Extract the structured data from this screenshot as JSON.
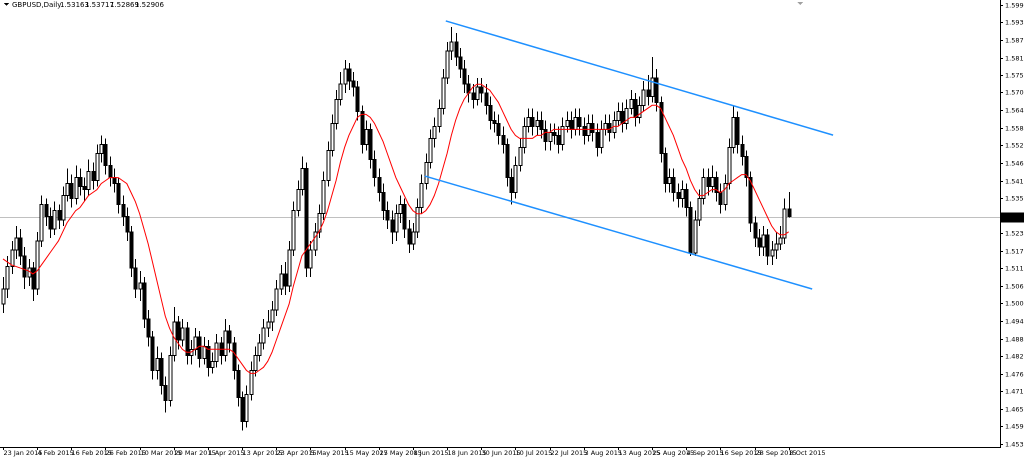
{
  "chart_data": {
    "type": "candlestick",
    "symbol": "GBPUSD,Daily",
    "categories": [
      "23 Jan 2015",
      null,
      null,
      null,
      null,
      null,
      null,
      null,
      "4 Feb 2015",
      null,
      null,
      null,
      null,
      null,
      null,
      null,
      "16 Feb 2015",
      null,
      null,
      null,
      null,
      null,
      null,
      null,
      "26 Feb 2015",
      null,
      null,
      null,
      null,
      null,
      null,
      null,
      "10 Mar 2015",
      null,
      null,
      null,
      null,
      null,
      null,
      null,
      "20 Mar 2015",
      null,
      null,
      null,
      null,
      null,
      null,
      null,
      "1 Apr 2015",
      null,
      null,
      null,
      null,
      null,
      null,
      null,
      "13 Apr 2015",
      null,
      null,
      null,
      null,
      null,
      null,
      null,
      "23 Apr 2015",
      null,
      null,
      null,
      null,
      null,
      null,
      null,
      "5 May 2015",
      null,
      null,
      null,
      null,
      null,
      null,
      null,
      "15 May 2015",
      null,
      null,
      null,
      null,
      null,
      null,
      null,
      "27 May 2015",
      null,
      null,
      null,
      null,
      null,
      null,
      null,
      "8 Jun 2015",
      null,
      null,
      null,
      null,
      null,
      null,
      null,
      "18 Jun 2015",
      null,
      null,
      null,
      null,
      null,
      null,
      null,
      "30 Jun 2015",
      null,
      null,
      null,
      null,
      null,
      null,
      null,
      "10 Jul 2015",
      null,
      null,
      null,
      null,
      null,
      null,
      null,
      "22 Jul 2015",
      null,
      null,
      null,
      null,
      null,
      null,
      null,
      "3 Aug 2015",
      null,
      null,
      null,
      null,
      null,
      null,
      null,
      "13 Aug 2015",
      null,
      null,
      null,
      null,
      null,
      null,
      null,
      "25 Aug 2015",
      null,
      null,
      null,
      null,
      null,
      null,
      null,
      "4 Sep 2015",
      null,
      null,
      null,
      null,
      null,
      null,
      null,
      "16 Sep 2015",
      null,
      null,
      null,
      null,
      null,
      null,
      null,
      "28 Sep 2015",
      null,
      null,
      null,
      null,
      null,
      null,
      null,
      "8 Oct 2015"
    ],
    "open": [
      1.5,
      1.505,
      1.5125,
      1.518,
      1.522,
      1.516,
      1.509,
      1.512,
      1.505,
      1.521,
      1.533,
      1.529,
      1.525,
      1.531,
      1.528,
      1.536,
      1.54,
      1.535,
      1.542,
      1.539,
      1.538,
      1.544,
      1.541,
      1.55,
      1.553,
      1.546,
      1.542,
      1.54,
      1.533,
      1.529,
      1.524,
      1.512,
      1.505,
      1.507,
      1.495,
      1.489,
      1.478,
      1.482,
      1.473,
      1.468,
      1.483,
      1.494,
      1.488,
      1.492,
      1.483,
      1.485,
      1.489,
      1.482,
      1.486,
      1.479,
      1.481,
      1.487,
      1.483,
      1.491,
      1.487,
      1.478,
      1.469,
      1.461,
      1.47,
      1.478,
      1.483,
      1.487,
      1.492,
      1.494,
      1.498,
      1.505,
      1.51,
      1.506,
      1.518,
      1.531,
      1.538,
      1.545,
      1.512,
      1.518,
      1.524,
      1.53,
      1.541,
      1.551,
      1.56,
      1.568,
      1.573,
      1.578,
      1.574,
      1.572,
      1.564,
      1.553,
      1.558,
      1.548,
      1.542,
      1.537,
      1.531,
      1.528,
      1.524,
      1.53,
      1.533,
      1.525,
      1.52,
      1.524,
      1.532,
      1.54,
      1.547,
      1.555,
      1.559,
      1.565,
      1.575,
      1.584,
      1.587,
      1.582,
      1.578,
      1.573,
      1.57,
      1.568,
      1.572,
      1.57,
      1.566,
      1.561,
      1.56,
      1.556,
      1.553,
      1.542,
      1.537,
      1.546,
      1.552,
      1.559,
      1.562,
      1.559,
      1.561,
      1.558,
      1.554,
      1.557,
      1.556,
      1.553,
      1.559,
      1.561,
      1.558,
      1.562,
      1.559,
      1.556,
      1.56,
      1.557,
      1.552,
      1.558,
      1.56,
      1.557,
      1.561,
      1.564,
      1.56,
      1.565,
      1.568,
      1.562,
      1.566,
      1.571,
      1.569,
      1.575,
      1.567,
      1.55,
      1.54,
      1.542,
      1.537,
      1.535,
      1.538,
      1.532,
      1.517,
      1.528,
      1.535,
      1.542,
      1.539,
      1.542,
      1.537,
      1.533,
      1.54,
      1.552,
      1.562,
      1.553,
      1.549,
      1.542,
      1.527,
      1.522,
      1.519,
      1.523,
      1.516,
      1.518,
      1.52,
      1.522,
      1.53163
    ],
    "high": [
      1.509,
      1.516,
      1.521,
      1.526,
      1.525,
      1.519,
      1.515,
      1.514,
      1.524,
      1.536,
      1.535,
      1.532,
      1.534,
      1.533,
      1.539,
      1.545,
      1.543,
      1.546,
      1.545,
      1.542,
      1.548,
      1.547,
      1.553,
      1.556,
      1.555,
      1.549,
      1.545,
      1.542,
      1.536,
      1.532,
      1.526,
      1.515,
      1.511,
      1.509,
      1.498,
      1.491,
      1.486,
      1.484,
      1.476,
      1.486,
      1.499,
      1.496,
      1.495,
      1.494,
      1.488,
      1.492,
      1.491,
      1.489,
      1.488,
      1.484,
      1.49,
      1.489,
      1.495,
      1.493,
      1.489,
      1.48,
      1.471,
      1.473,
      1.481,
      1.486,
      1.49,
      1.495,
      1.498,
      1.501,
      1.508,
      1.513,
      1.514,
      1.521,
      1.534,
      1.541,
      1.549,
      1.547,
      1.521,
      1.527,
      1.533,
      1.544,
      1.554,
      1.563,
      1.571,
      1.577,
      1.581,
      1.58,
      1.577,
      1.574,
      1.566,
      1.561,
      1.56,
      1.551,
      1.545,
      1.54,
      1.534,
      1.531,
      1.533,
      1.536,
      1.535,
      1.528,
      1.527,
      1.535,
      1.543,
      1.55,
      1.558,
      1.562,
      1.568,
      1.578,
      1.587,
      1.592,
      1.59,
      1.585,
      1.581,
      1.576,
      1.573,
      1.575,
      1.575,
      1.573,
      1.569,
      1.564,
      1.563,
      1.559,
      1.555,
      1.545,
      1.549,
      1.555,
      1.562,
      1.565,
      1.565,
      1.564,
      1.564,
      1.561,
      1.56,
      1.56,
      1.559,
      1.562,
      1.564,
      1.564,
      1.565,
      1.565,
      1.562,
      1.563,
      1.563,
      1.56,
      1.561,
      1.563,
      1.563,
      1.564,
      1.567,
      1.567,
      1.568,
      1.571,
      1.57,
      1.569,
      1.574,
      1.576,
      1.582,
      1.578,
      1.569,
      1.552,
      1.545,
      1.545,
      1.54,
      1.541,
      1.54,
      1.534,
      1.531,
      1.538,
      1.545,
      1.545,
      1.546,
      1.544,
      1.54,
      1.543,
      1.555,
      1.566,
      1.564,
      1.556,
      1.551,
      1.544,
      1.529,
      1.525,
      1.526,
      1.525,
      1.521,
      1.524,
      1.526,
      1.535,
      1.53717
    ],
    "low": [
      1.497,
      1.502,
      1.51,
      1.515,
      1.513,
      1.505,
      1.506,
      1.501,
      1.503,
      1.519,
      1.526,
      1.522,
      1.523,
      1.525,
      1.526,
      1.534,
      1.532,
      1.533,
      1.536,
      1.534,
      1.536,
      1.538,
      1.539,
      1.547,
      1.543,
      1.539,
      1.537,
      1.53,
      1.526,
      1.521,
      1.509,
      1.502,
      1.501,
      1.492,
      1.486,
      1.475,
      1.475,
      1.47,
      1.464,
      1.466,
      1.481,
      1.485,
      1.486,
      1.48,
      1.48,
      1.483,
      1.479,
      1.48,
      1.476,
      1.477,
      1.479,
      1.48,
      1.481,
      1.484,
      1.475,
      1.466,
      1.458,
      1.459,
      1.468,
      1.476,
      1.481,
      1.485,
      1.489,
      1.491,
      1.496,
      1.503,
      1.503,
      1.504,
      1.516,
      1.529,
      1.536,
      1.509,
      1.509,
      1.516,
      1.522,
      1.528,
      1.539,
      1.549,
      1.558,
      1.566,
      1.57,
      1.571,
      1.569,
      1.561,
      1.55,
      1.551,
      1.545,
      1.539,
      1.534,
      1.528,
      1.525,
      1.52,
      1.521,
      1.527,
      1.522,
      1.517,
      1.518,
      1.522,
      1.53,
      1.538,
      1.545,
      1.552,
      1.557,
      1.563,
      1.573,
      1.581,
      1.579,
      1.575,
      1.57,
      1.567,
      1.565,
      1.566,
      1.567,
      1.563,
      1.558,
      1.557,
      1.553,
      1.55,
      1.539,
      1.533,
      1.535,
      1.544,
      1.55,
      1.557,
      1.556,
      1.556,
      1.555,
      1.551,
      1.551,
      1.553,
      1.55,
      1.551,
      1.557,
      1.555,
      1.556,
      1.556,
      1.553,
      1.554,
      1.554,
      1.549,
      1.55,
      1.556,
      1.554,
      1.555,
      1.559,
      1.557,
      1.558,
      1.563,
      1.559,
      1.56,
      1.564,
      1.566,
      1.567,
      1.564,
      1.547,
      1.537,
      1.537,
      1.534,
      1.532,
      1.532,
      1.529,
      1.516,
      1.516,
      1.526,
      1.533,
      1.536,
      1.537,
      1.534,
      1.53,
      1.531,
      1.538,
      1.55,
      1.55,
      1.546,
      1.539,
      1.524,
      1.519,
      1.516,
      1.516,
      1.513,
      1.513,
      1.515,
      1.518,
      1.52,
      1.52869
    ],
    "close": [
      1.505,
      1.5125,
      1.518,
      1.522,
      1.516,
      1.509,
      1.512,
      1.505,
      1.521,
      1.533,
      1.529,
      1.525,
      1.531,
      1.528,
      1.536,
      1.54,
      1.535,
      1.542,
      1.539,
      1.538,
      1.544,
      1.541,
      1.55,
      1.553,
      1.546,
      1.542,
      1.54,
      1.533,
      1.529,
      1.524,
      1.512,
      1.505,
      1.507,
      1.495,
      1.489,
      1.478,
      1.482,
      1.473,
      1.468,
      1.483,
      1.494,
      1.488,
      1.492,
      1.483,
      1.485,
      1.489,
      1.482,
      1.486,
      1.479,
      1.481,
      1.487,
      1.483,
      1.491,
      1.487,
      1.478,
      1.469,
      1.461,
      1.47,
      1.478,
      1.483,
      1.487,
      1.492,
      1.494,
      1.498,
      1.505,
      1.51,
      1.506,
      1.518,
      1.531,
      1.538,
      1.545,
      1.512,
      1.518,
      1.524,
      1.53,
      1.541,
      1.551,
      1.56,
      1.568,
      1.573,
      1.578,
      1.574,
      1.572,
      1.564,
      1.553,
      1.558,
      1.548,
      1.542,
      1.537,
      1.531,
      1.528,
      1.524,
      1.53,
      1.533,
      1.525,
      1.52,
      1.524,
      1.532,
      1.54,
      1.547,
      1.555,
      1.559,
      1.565,
      1.575,
      1.584,
      1.587,
      1.582,
      1.578,
      1.573,
      1.57,
      1.568,
      1.572,
      1.57,
      1.566,
      1.561,
      1.56,
      1.556,
      1.553,
      1.542,
      1.537,
      1.546,
      1.552,
      1.559,
      1.562,
      1.559,
      1.561,
      1.558,
      1.554,
      1.557,
      1.556,
      1.553,
      1.559,
      1.561,
      1.558,
      1.562,
      1.559,
      1.556,
      1.56,
      1.557,
      1.552,
      1.558,
      1.56,
      1.557,
      1.561,
      1.564,
      1.56,
      1.565,
      1.568,
      1.562,
      1.566,
      1.571,
      1.569,
      1.575,
      1.567,
      1.55,
      1.54,
      1.542,
      1.537,
      1.535,
      1.538,
      1.532,
      1.517,
      1.528,
      1.535,
      1.542,
      1.539,
      1.542,
      1.537,
      1.533,
      1.54,
      1.552,
      1.562,
      1.553,
      1.549,
      1.542,
      1.527,
      1.522,
      1.519,
      1.523,
      1.516,
      1.518,
      1.52,
      1.522,
      1.5316,
      1.52906
    ],
    "ma": {
      "color": "#ff0000",
      "values": [
        1.515,
        1.514,
        1.513,
        1.5125,
        1.512,
        1.5115,
        1.511,
        1.51,
        1.511,
        1.513,
        1.515,
        1.517,
        1.519,
        1.521,
        1.524,
        1.527,
        1.529,
        1.531,
        1.532,
        1.534,
        1.536,
        1.537,
        1.538,
        1.54,
        1.541,
        1.542,
        1.542,
        1.542,
        1.541,
        1.54,
        1.537,
        1.534,
        1.53,
        1.525,
        1.52,
        1.514,
        1.508,
        1.502,
        1.496,
        1.492,
        1.489,
        1.487,
        1.485,
        1.484,
        1.484,
        1.485,
        1.486,
        1.486,
        1.485,
        1.485,
        1.485,
        1.485,
        1.485,
        1.485,
        1.484,
        1.482,
        1.48,
        1.478,
        1.477,
        1.477,
        1.478,
        1.479,
        1.481,
        1.484,
        1.488,
        1.492,
        1.496,
        1.5,
        1.506,
        1.511,
        1.516,
        1.518,
        1.52,
        1.522,
        1.524,
        1.527,
        1.531,
        1.536,
        1.541,
        1.547,
        1.552,
        1.556,
        1.559,
        1.562,
        1.563,
        1.563,
        1.562,
        1.56,
        1.557,
        1.554,
        1.55,
        1.546,
        1.542,
        1.539,
        1.536,
        1.533,
        1.531,
        1.53,
        1.53,
        1.531,
        1.533,
        1.536,
        1.54,
        1.545,
        1.55,
        1.556,
        1.561,
        1.565,
        1.568,
        1.57,
        1.572,
        1.573,
        1.573,
        1.572,
        1.571,
        1.569,
        1.567,
        1.564,
        1.561,
        1.558,
        1.556,
        1.555,
        1.555,
        1.555,
        1.555,
        1.556,
        1.556,
        1.557,
        1.557,
        1.558,
        1.558,
        1.558,
        1.558,
        1.558,
        1.558,
        1.558,
        1.558,
        1.558,
        1.558,
        1.558,
        1.558,
        1.558,
        1.558,
        1.559,
        1.559,
        1.56,
        1.561,
        1.562,
        1.562,
        1.563,
        1.564,
        1.565,
        1.566,
        1.566,
        1.565,
        1.562,
        1.559,
        1.556,
        1.552,
        1.548,
        1.545,
        1.541,
        1.538,
        1.536,
        1.536,
        1.537,
        1.538,
        1.538,
        1.537,
        1.538,
        1.54,
        1.541,
        1.542,
        1.543,
        1.543,
        1.541,
        1.538,
        1.535,
        1.532,
        1.529,
        1.526,
        1.524,
        1.523,
        1.523,
        1.524
      ]
    },
    "up_color": "#ffffff",
    "down_color": "#000000",
    "trendline_color": "#1e90ff",
    "trendlines": [
      {
        "x": [
          103.7,
          194.4
        ],
        "y": [
          1.594,
          1.5561
        ]
      },
      {
        "x": [
          98.8,
          189.5
        ],
        "y": [
          1.5425,
          1.505
        ]
      }
    ],
    "ylim": [
      1.45255,
      1.60096
    ],
    "yticks": [
      {
        "value": 1.5993,
        "label": "1.59930"
      },
      {
        "value": 1.5935,
        "label": "1.59350"
      },
      1.58765,
      {
        "value": 1.5818,
        "label": "1.58180"
      },
      1.57595,
      1.57025,
      {
        "value": 1.5644,
        "label": "1.56440"
      },
      1.55855,
      {
        "value": 1.5527,
        "label": "1.55270"
      },
      1.54685,
      {
        "value": 1.541,
        "label": "1.54100"
      },
      1.53515,
      1.52345,
      {
        "value": 1.5176,
        "label": "1.51760"
      },
      {
        "value": 1.5119,
        "label": "1.51190"
      },
      1.50605,
      {
        "value": 1.5002,
        "label": "1.50020"
      },
      1.49435,
      {
        "value": 1.4885,
        "label": "1.48850"
      },
      1.48265,
      {
        "value": 1.4768,
        "label": "1.47680"
      },
      {
        "value": 1.4711,
        "label": "1.47110"
      },
      1.46525,
      {
        "value": 1.4594,
        "label": "1.45940"
      },
      1.45355
    ]
  }
}
